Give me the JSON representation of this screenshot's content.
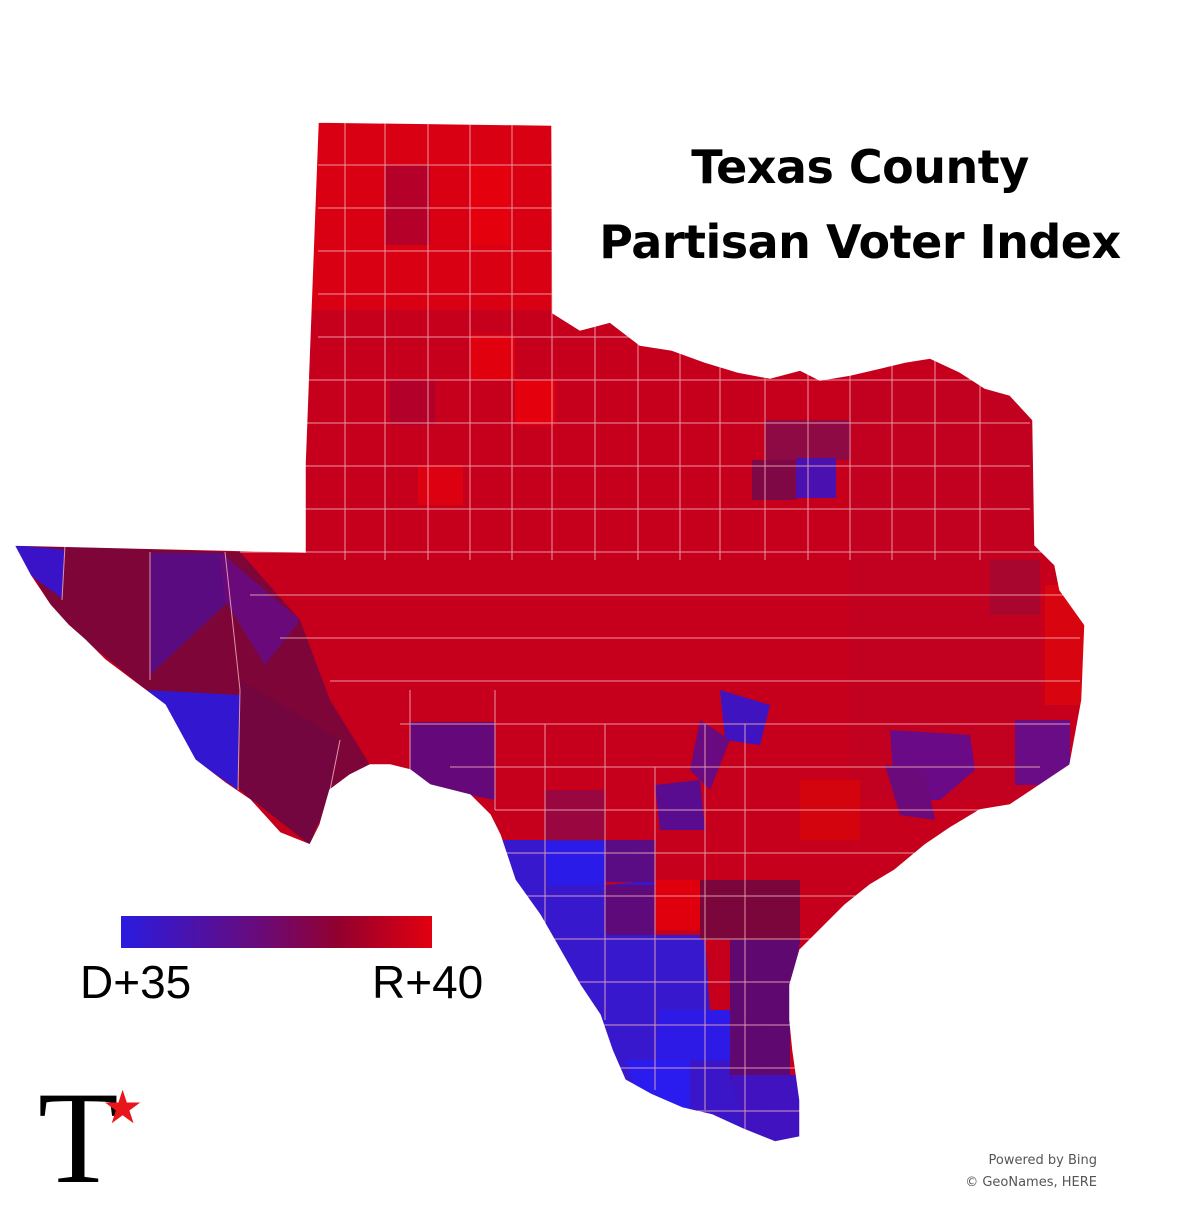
{
  "map": {
    "title_line1": "Texas County",
    "title_line2": "Partisan Voter Index",
    "legend": {
      "min_label": "D+35",
      "max_label": "R+40",
      "min_color": "#2a1be0",
      "mid_color": "#6a0a78",
      "max_color": "#e20010"
    },
    "regions": [
      {
        "name": "panhandle",
        "color": "#d80012"
      },
      {
        "name": "north-rolling-plains",
        "color": "#cf0018"
      },
      {
        "name": "permian-basin",
        "color": "#cc0019"
      },
      {
        "name": "hill-country",
        "color": "#c5001d"
      },
      {
        "name": "north-central",
        "color": "#c8001b"
      },
      {
        "name": "east-texas",
        "color": "#c4001e"
      },
      {
        "name": "trans-pecos",
        "color": "#7d0538"
      },
      {
        "name": "el-paso",
        "color": "#3b14c8"
      },
      {
        "name": "big-bend",
        "color": "#3216d0"
      },
      {
        "name": "south-texas",
        "color": "#2a1be0"
      },
      {
        "name": "coastal-bend",
        "color": "#66086a"
      },
      {
        "name": "dallas",
        "color": "#4a10b0"
      },
      {
        "name": "austin",
        "color": "#4a12b8"
      },
      {
        "name": "houston",
        "color": "#6a0c86"
      },
      {
        "name": "san-antonio",
        "color": "#5a0c90"
      }
    ]
  },
  "logo": {
    "letter": "T",
    "star": "★",
    "star_color": "#e8151b"
  },
  "credits": {
    "line1": "Powered by Bing",
    "line2": "© GeoNames, HERE"
  }
}
